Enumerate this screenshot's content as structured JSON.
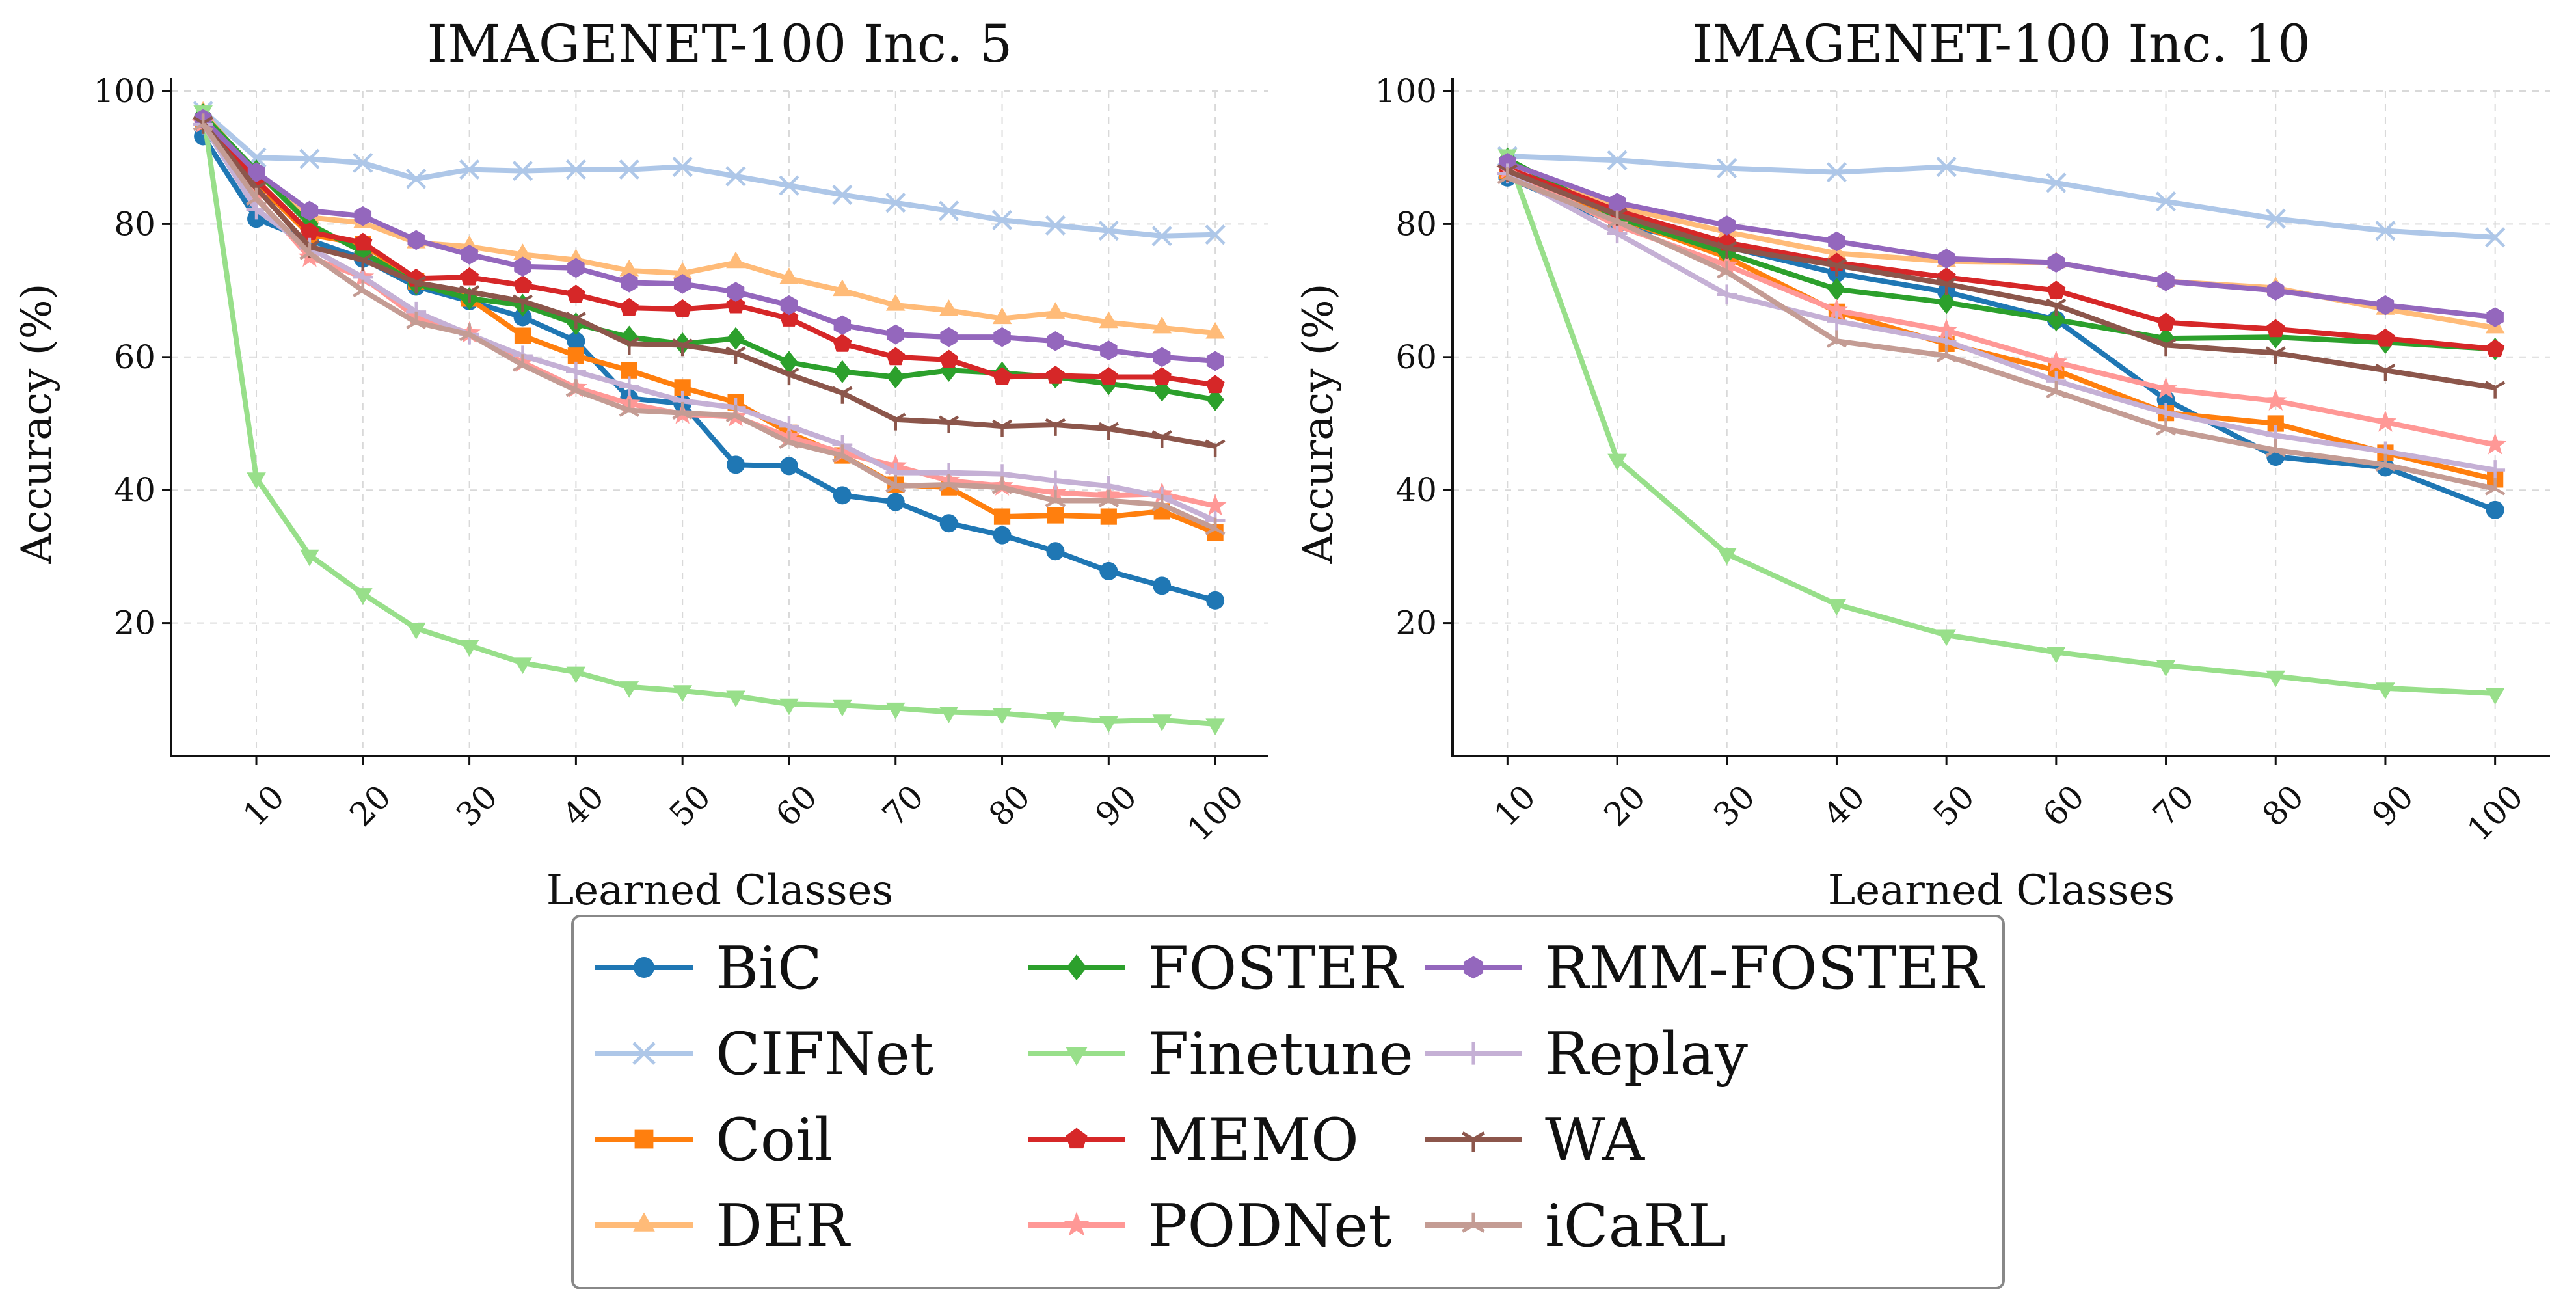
{
  "chart_data": [
    {
      "type": "line",
      "title": "IMAGENET-100 Inc. 5",
      "xlabel": "Learned Classes",
      "ylabel": "Accuracy (%)",
      "xlim": [
        2,
        105
      ],
      "ylim": [
        0,
        100
      ],
      "xticks": [
        10,
        20,
        30,
        40,
        50,
        60,
        70,
        80,
        90,
        100
      ],
      "yticks": [
        20,
        40,
        60,
        80,
        100
      ],
      "grid": true,
      "x": [
        5,
        10,
        15,
        20,
        25,
        30,
        35,
        40,
        45,
        50,
        55,
        60,
        65,
        70,
        75,
        80,
        85,
        90,
        95,
        100
      ],
      "series": [
        {
          "name": "BiC",
          "values": [
            93.2,
            80.8,
            77.6,
            74.8,
            70.6,
            68.4,
            66.0,
            62.4,
            53.8,
            53.0,
            43.8,
            43.6,
            39.2,
            38.2,
            35.0,
            33.2,
            30.8,
            27.8,
            25.6,
            23.4
          ]
        },
        {
          "name": "CIFNet",
          "values": [
            97.0,
            90.0,
            89.8,
            89.2,
            86.8,
            88.2,
            88.0,
            88.2,
            88.2,
            88.6,
            87.2,
            85.8,
            84.4,
            83.2,
            82.0,
            80.6,
            79.8,
            79.0,
            78.2,
            78.4
          ]
        },
        {
          "name": "Coil",
          "values": [
            95.4,
            86.2,
            78.4,
            77.0,
            71.4,
            68.8,
            63.2,
            60.2,
            58.0,
            55.4,
            53.2,
            48.6,
            45.2,
            40.8,
            40.4,
            36.0,
            36.2,
            36.0,
            36.8,
            33.6
          ]
        },
        {
          "name": "DER",
          "values": [
            96.8,
            87.6,
            81.0,
            80.2,
            77.2,
            76.6,
            75.4,
            74.6,
            73.0,
            72.6,
            74.2,
            71.8,
            70.0,
            67.8,
            67.0,
            65.8,
            66.6,
            65.2,
            64.4,
            63.6
          ]
        },
        {
          "name": "FOSTER",
          "values": [
            96.4,
            88.0,
            80.0,
            75.8,
            71.0,
            68.8,
            67.8,
            65.0,
            63.0,
            62.0,
            62.8,
            59.2,
            57.8,
            57.0,
            58.0,
            57.6,
            57.0,
            56.0,
            55.0,
            53.6
          ]
        },
        {
          "name": "Finetune",
          "values": [
            97.0,
            41.8,
            30.2,
            24.4,
            19.2,
            16.6,
            14.0,
            12.6,
            10.4,
            9.8,
            9.0,
            7.8,
            7.6,
            7.2,
            6.6,
            6.4,
            5.8,
            5.2,
            5.4,
            4.8
          ]
        },
        {
          "name": "MEMO",
          "values": [
            95.6,
            86.6,
            78.8,
            77.2,
            71.8,
            72.0,
            70.8,
            69.4,
            67.4,
            67.2,
            67.8,
            65.8,
            62.0,
            60.0,
            59.6,
            57.0,
            57.2,
            57.0,
            57.0,
            55.8
          ]
        },
        {
          "name": "PODNet",
          "values": [
            95.2,
            84.0,
            75.0,
            72.0,
            66.0,
            63.6,
            59.2,
            55.4,
            53.0,
            51.4,
            51.0,
            48.0,
            45.6,
            43.6,
            41.4,
            40.6,
            39.6,
            39.2,
            39.4,
            37.6
          ]
        },
        {
          "name": "RMM-FOSTER",
          "values": [
            95.8,
            87.8,
            82.0,
            81.2,
            77.6,
            75.4,
            73.6,
            73.4,
            71.2,
            71.0,
            69.8,
            67.8,
            64.8,
            63.4,
            63.0,
            63.0,
            62.4,
            61.0,
            60.0,
            59.4
          ]
        },
        {
          "name": "Replay",
          "values": [
            95.0,
            82.2,
            76.4,
            72.0,
            66.8,
            63.4,
            60.2,
            57.8,
            55.6,
            53.4,
            52.4,
            49.6,
            46.8,
            42.6,
            42.6,
            42.4,
            41.4,
            40.6,
            39.0,
            35.4
          ]
        },
        {
          "name": "WA",
          "values": [
            95.2,
            85.4,
            76.6,
            74.6,
            71.2,
            69.8,
            68.4,
            65.8,
            62.0,
            61.8,
            60.6,
            57.4,
            54.6,
            50.6,
            50.2,
            49.6,
            49.8,
            49.2,
            48.0,
            46.6
          ]
        },
        {
          "name": "iCaRL",
          "values": [
            95.0,
            83.8,
            75.6,
            70.0,
            65.2,
            63.4,
            58.8,
            55.0,
            52.0,
            51.6,
            51.2,
            47.2,
            45.2,
            40.6,
            40.8,
            40.4,
            38.4,
            38.4,
            37.8,
            34.2
          ]
        }
      ]
    },
    {
      "type": "line",
      "title": "IMAGENET-100 Inc. 10",
      "xlabel": "Learned Classes",
      "ylabel": "Accuracy (%)",
      "xlim": [
        5,
        105
      ],
      "ylim": [
        0,
        100
      ],
      "xticks": [
        10,
        20,
        30,
        40,
        50,
        60,
        70,
        80,
        90,
        100
      ],
      "yticks": [
        20,
        40,
        60,
        80,
        100
      ],
      "grid": true,
      "x": [
        10,
        20,
        30,
        40,
        50,
        60,
        70,
        80,
        90,
        100
      ],
      "series": [
        {
          "name": "BiC",
          "values": [
            87.0,
            80.0,
            76.6,
            72.6,
            69.8,
            65.6,
            53.6,
            45.0,
            43.4,
            37.0
          ]
        },
        {
          "name": "CIFNet",
          "values": [
            90.2,
            89.6,
            88.4,
            87.8,
            88.6,
            86.2,
            83.4,
            80.8,
            79.0,
            78.0
          ]
        },
        {
          "name": "Coil",
          "values": [
            88.0,
            81.0,
            75.0,
            66.8,
            62.0,
            58.0,
            51.6,
            50.0,
            45.6,
            41.6
          ]
        },
        {
          "name": "DER",
          "values": [
            89.4,
            82.6,
            78.8,
            75.6,
            74.4,
            74.2,
            71.4,
            70.4,
            67.2,
            64.4
          ]
        },
        {
          "name": "FOSTER",
          "values": [
            89.8,
            81.0,
            75.6,
            70.2,
            68.2,
            65.6,
            62.8,
            63.0,
            62.2,
            61.2
          ]
        },
        {
          "name": "Finetune",
          "values": [
            90.4,
            44.6,
            30.4,
            22.8,
            18.2,
            15.6,
            13.6,
            12.0,
            10.2,
            9.4
          ]
        },
        {
          "name": "MEMO",
          "values": [
            88.4,
            82.0,
            77.2,
            74.2,
            72.0,
            70.0,
            65.2,
            64.2,
            62.8,
            61.2
          ]
        },
        {
          "name": "PODNet",
          "values": [
            88.2,
            79.8,
            73.8,
            67.0,
            64.0,
            59.2,
            55.2,
            53.4,
            50.2,
            46.8
          ]
        },
        {
          "name": "RMM-FOSTER",
          "values": [
            89.2,
            83.2,
            79.8,
            77.4,
            74.8,
            74.2,
            71.4,
            70.0,
            67.8,
            66.0
          ]
        },
        {
          "name": "Replay",
          "values": [
            87.6,
            78.6,
            69.4,
            65.4,
            62.4,
            56.4,
            51.6,
            48.2,
            45.8,
            43.0
          ]
        },
        {
          "name": "WA",
          "values": [
            88.0,
            81.4,
            76.4,
            73.8,
            71.0,
            67.8,
            61.8,
            60.6,
            58.0,
            55.4
          ]
        },
        {
          "name": "iCaRL",
          "values": [
            87.0,
            80.4,
            72.8,
            62.4,
            60.2,
            54.8,
            49.2,
            46.0,
            43.8,
            40.2
          ]
        }
      ]
    }
  ],
  "legend": {
    "placement": "bottom-center",
    "columns": 3,
    "entries": [
      {
        "name": "BiC",
        "color": "#1f77b4",
        "marker": "circle"
      },
      {
        "name": "CIFNet",
        "color": "#aec7e8",
        "marker": "x"
      },
      {
        "name": "Coil",
        "color": "#ff7f0e",
        "marker": "square"
      },
      {
        "name": "DER",
        "color": "#ffbb78",
        "marker": "triangle-up"
      },
      {
        "name": "FOSTER",
        "color": "#2ca02c",
        "marker": "diamond"
      },
      {
        "name": "Finetune",
        "color": "#98df8a",
        "marker": "triangle-down"
      },
      {
        "name": "MEMO",
        "color": "#d62728",
        "marker": "pentagon"
      },
      {
        "name": "PODNet",
        "color": "#ff9896",
        "marker": "star"
      },
      {
        "name": "RMM-FOSTER",
        "color": "#9467bd",
        "marker": "hexagon"
      },
      {
        "name": "Replay",
        "color": "#c5b0d5",
        "marker": "plus"
      },
      {
        "name": "WA",
        "color": "#8c564b",
        "marker": "tri-down"
      },
      {
        "name": "iCaRL",
        "color": "#c49c94",
        "marker": "tri-up"
      }
    ]
  }
}
